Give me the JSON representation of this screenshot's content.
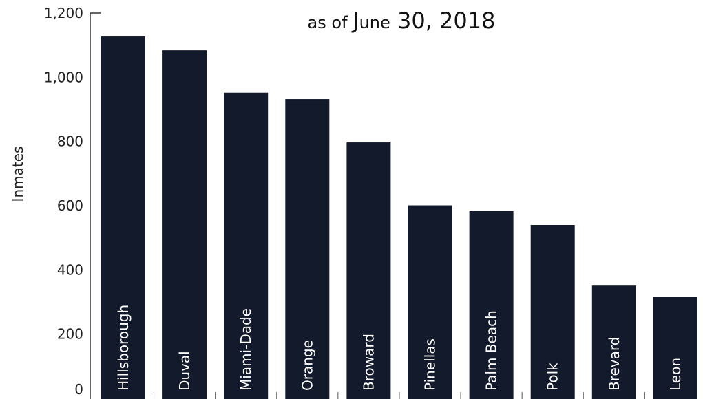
{
  "chart_data": {
    "type": "bar",
    "title": {
      "prefix_sc": "as of ",
      "initial": "J",
      "rest_sc": "une",
      "suffix": " 30, 2018"
    },
    "ylabel": "Inmates",
    "xlabel": "",
    "ylim": [
      0,
      1200
    ],
    "yticks": [
      0,
      200,
      400,
      600,
      800,
      1000,
      1200
    ],
    "ytick_labels": [
      "0",
      "200",
      "400",
      "600",
      "800",
      "1,000",
      "1,200"
    ],
    "categories": [
      "Hillsborough",
      "Duval",
      "Miami-Dade",
      "Orange",
      "Broward",
      "Pinellas",
      "Palm Beach",
      "Polk",
      "Brevard",
      "Leon"
    ],
    "values": [
      1127,
      1084,
      952,
      932,
      797,
      601,
      583,
      540,
      351,
      315
    ],
    "bar_color": "#131a2c",
    "label_color": "#ffffff",
    "grid": false
  }
}
